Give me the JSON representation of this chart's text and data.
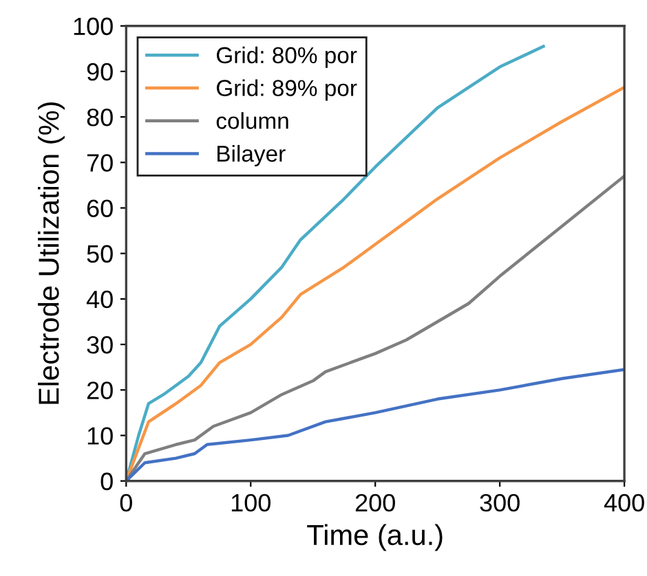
{
  "chart_data": {
    "type": "line",
    "xlabel": "Time (a.u.)",
    "ylabel": "Electrode Utilization (%)",
    "xlim": [
      0,
      400
    ],
    "xticks": [
      0,
      100,
      200,
      300,
      400
    ],
    "ylim": [
      0,
      100
    ],
    "yticks": [
      0,
      10,
      20,
      30,
      40,
      50,
      60,
      70,
      80,
      90,
      100
    ],
    "grid": false,
    "legend": "top left",
    "marker": "none",
    "line_style": "solid",
    "series": [
      {
        "name": "Grid: 80% por",
        "color": "#4bacc6",
        "x": [
          0,
          10,
          18,
          30,
          50,
          60,
          75,
          100,
          125,
          140,
          175,
          200,
          250,
          300,
          335
        ],
        "values": [
          0,
          10,
          17,
          19,
          23,
          26,
          34,
          40,
          47,
          53,
          62,
          69,
          82,
          91,
          95.5
        ]
      },
      {
        "name": "Grid: 89% por",
        "color": "#f79646",
        "x": [
          0,
          18,
          40,
          60,
          75,
          100,
          125,
          140,
          175,
          200,
          225,
          250,
          300,
          350,
          400
        ],
        "values": [
          0,
          13,
          17,
          21,
          26,
          30,
          36,
          41,
          47,
          52,
          57,
          62,
          71,
          79,
          86.5
        ]
      },
      {
        "name": "column",
        "color": "#7f7f7f",
        "x": [
          0,
          15,
          40,
          55,
          70,
          100,
          125,
          150,
          160,
          200,
          225,
          250,
          275,
          300,
          350,
          400
        ],
        "values": [
          0,
          6,
          8,
          9,
          12,
          15,
          19,
          22,
          24,
          28,
          31,
          35,
          39,
          45,
          56,
          67
        ]
      },
      {
        "name": "Bilayer",
        "color": "#4472c4",
        "x": [
          0,
          15,
          40,
          55,
          65,
          100,
          130,
          160,
          200,
          250,
          300,
          350,
          400
        ],
        "values": [
          0,
          4,
          5,
          6,
          8,
          9,
          10,
          13,
          15,
          18,
          20,
          22.5,
          24.5
        ]
      }
    ]
  }
}
